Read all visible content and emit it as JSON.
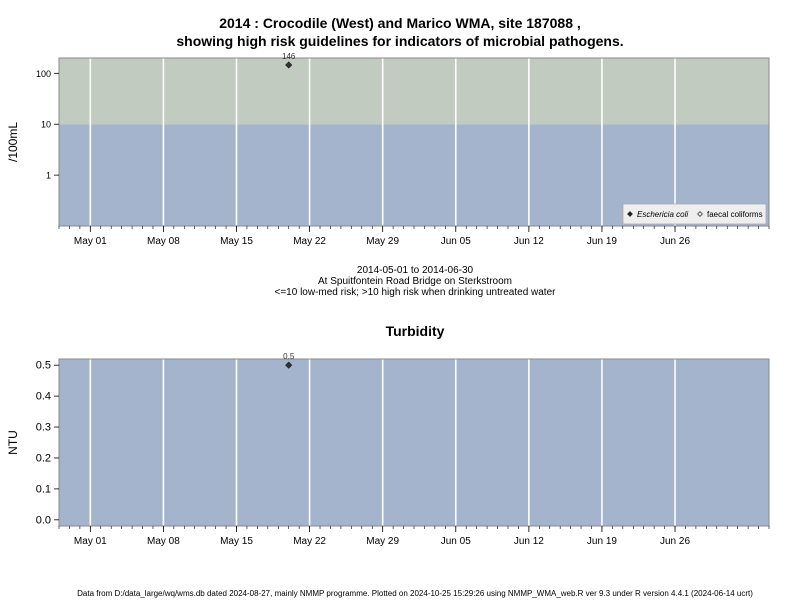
{
  "title_line1": "2014 : Crocodile (West) and Marico WMA, site 187088 ,",
  "title_line2": "showing high risk guidelines for indicators of microbial pathogens.",
  "caption": {
    "range": "2014-05-01 to 2014-06-30",
    "location": "At Spuitfontein Road Bridge on Sterkstroom",
    "risk": "<=10 low-med risk; >10 high risk when drinking untreated water"
  },
  "footer": "Data from D:/data_large/wq/wms.db dated 2024-08-27, mainly NMMP programme. Plotted on 2024-10-25 15:29:26 using NMMP_WMA_web.R ver 9.3 under R version 4.4.1 (2024-06-14 ucrt)",
  "colors": {
    "low_risk": "#a3b4cc",
    "high_risk": "#c2cbc0",
    "grid": "#ffffff"
  },
  "chart_data": [
    {
      "type": "scatter",
      "title": "",
      "ylabel": "/100mL",
      "yscale": "log",
      "ylim": [
        0.1,
        200
      ],
      "yticks": [
        1,
        10,
        100
      ],
      "ytick_labels": [
        "1",
        "10",
        "100"
      ],
      "xlim": [
        "2014-04-28",
        "2014-07-05"
      ],
      "xticks": [
        "2014-05-01",
        "2014-05-08",
        "2014-05-15",
        "2014-05-22",
        "2014-05-29",
        "2014-06-05",
        "2014-06-12",
        "2014-06-19",
        "2014-06-26"
      ],
      "xtick_labels": [
        "May 01",
        "May 08",
        "May 15",
        "May 22",
        "May 29",
        "Jun 05",
        "Jun 12",
        "Jun 19",
        "Jun 26"
      ],
      "threshold": 10,
      "grid": true,
      "legend_position": "bottom-right",
      "series": [
        {
          "name": "Eschericia coli",
          "marker": "filled-diamond",
          "points": [
            {
              "x": "2014-05-20",
              "y": 146,
              "label": "146"
            }
          ]
        },
        {
          "name": "faecal coliforms",
          "marker": "open-diamond",
          "points": []
        }
      ]
    },
    {
      "type": "scatter",
      "title": "Turbidity",
      "ylabel": "NTU",
      "yscale": "linear",
      "ylim": [
        -0.02,
        0.52
      ],
      "yticks": [
        0,
        0.1,
        0.2,
        0.3,
        0.4,
        0.5
      ],
      "ytick_labels": [
        "0.0",
        "0.1",
        "0.2",
        "0.3",
        "0.4",
        "0.5"
      ],
      "xlim": [
        "2014-04-28",
        "2014-07-05"
      ],
      "xticks": [
        "2014-05-01",
        "2014-05-08",
        "2014-05-15",
        "2014-05-22",
        "2014-05-29",
        "2014-06-05",
        "2014-06-12",
        "2014-06-19",
        "2014-06-26"
      ],
      "xtick_labels": [
        "May 01",
        "May 08",
        "May 15",
        "May 22",
        "May 29",
        "Jun 05",
        "Jun 12",
        "Jun 19",
        "Jun 26"
      ],
      "grid": true,
      "series": [
        {
          "name": "",
          "marker": "filled-diamond",
          "points": [
            {
              "x": "2014-05-20",
              "y": 0.5,
              "label": "0.5"
            }
          ]
        }
      ]
    }
  ]
}
